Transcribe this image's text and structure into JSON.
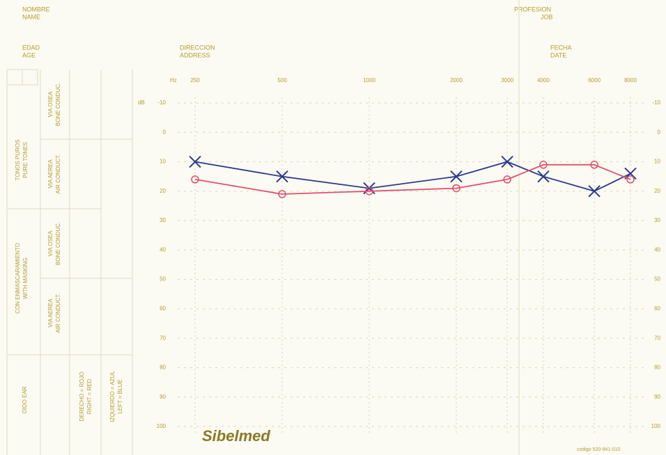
{
  "form": {
    "name_es": "NOMBRE",
    "name_en": "NAME",
    "age_es": "EDAD",
    "age_en": "AGE",
    "address_es": "DIRECCION",
    "address_en": "ADDRESS",
    "job_es": "PROFESION",
    "job_en": "JOB",
    "date_es": "FECHA",
    "date_en": "DATE",
    "pure_tones_es": "TONOS PUROS",
    "pure_tones_en": "PURE TONES",
    "bone_es": "VIA OSEA",
    "bone_en": "BONE CONDUC.",
    "air_es": "VIA AEREA",
    "air_en": "AIR CONDUCT.",
    "masking_es": "CON ENMASCARAMIENTO",
    "masking_en": "WITH MASKING",
    "ear": "OIDO EAR",
    "right_en": "RIGHT = RED",
    "left_en": "LEFT = BLUE",
    "brand": "Sibelmed",
    "code": "codigo 520-941-010"
  },
  "chart_data": {
    "type": "line",
    "x_label": "Hz",
    "y_label": "dB",
    "x": [
      250,
      500,
      1000,
      2000,
      3000,
      4000,
      6000,
      8000
    ],
    "xlim": [
      250,
      8000
    ],
    "xticks": [
      250,
      500,
      1000,
      2000,
      3000,
      4000,
      6000,
      8000
    ],
    "x_log": true,
    "ylim": [
      -10,
      100
    ],
    "yticks": [
      -10,
      0,
      10,
      20,
      30,
      40,
      50,
      60,
      70,
      80,
      90,
      100
    ],
    "y_inverted": true,
    "grid": true,
    "series": [
      {
        "name": "IZQUIERDO = AZUL",
        "color": "#2c3a8c",
        "marker": "x",
        "values": [
          10,
          15,
          19,
          15,
          10,
          15,
          20,
          14
        ]
      },
      {
        "name": "DERECHO = ROJO",
        "color": "#e0506a",
        "marker": "o",
        "values": [
          16,
          21,
          20,
          19,
          16,
          11,
          11,
          16
        ]
      }
    ]
  }
}
